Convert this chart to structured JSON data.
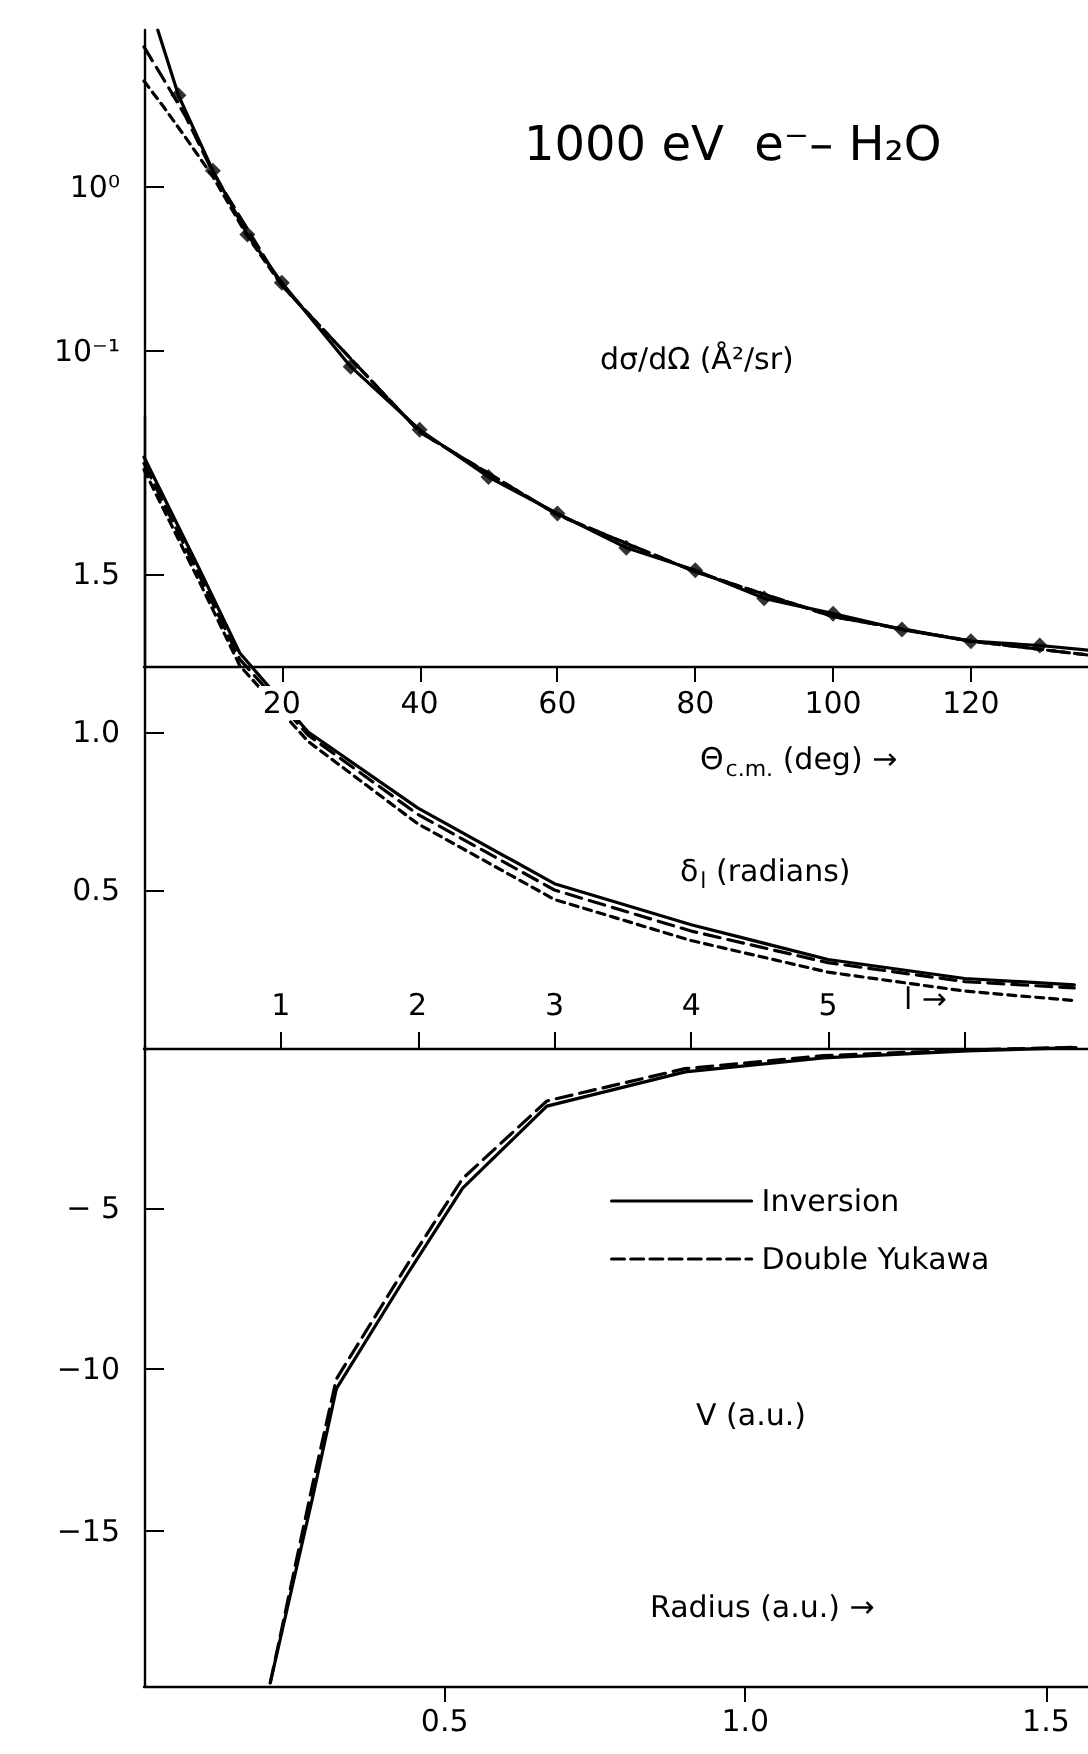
{
  "chart_data": [
    {
      "type": "line",
      "title": "1000 eV  e⁻– H₂O",
      "ylabel": "dσ/dΩ (Å²/sr)",
      "xlabel": "Θ$_{c.m.}$ (deg) →",
      "log": "y",
      "xlim": [
        0,
        137
      ],
      "xticks": [
        20,
        40,
        60,
        80,
        100,
        120
      ],
      "ylim": [
        0.0012,
        9
      ],
      "yticks": [
        {
          "value": 1,
          "label": "10⁰"
        },
        {
          "value": 0.1,
          "label": "10⁻¹"
        }
      ],
      "series": [
        {
          "type": "scatter",
          "marker": "diamond",
          "color": "#000000",
          "x": [
            5,
            10,
            15,
            20,
            30,
            40,
            50,
            60,
            70,
            80,
            90,
            100,
            110,
            120,
            130
          ],
          "values": [
            3.6,
            1.25,
            0.51,
            0.26,
            0.08,
            0.033,
            0.017,
            0.0102,
            0.0063,
            0.0046,
            0.0031,
            0.0025,
            0.002,
            0.0017,
            0.0016
          ]
        },
        {
          "line_style": "solid",
          "color": "#000000",
          "x": [
            2,
            5,
            10,
            15,
            20,
            30,
            40,
            50,
            60,
            70,
            80,
            90,
            100,
            110,
            120,
            130,
            137
          ],
          "values": [
            9,
            3.6,
            1.25,
            0.51,
            0.26,
            0.08,
            0.033,
            0.017,
            0.0102,
            0.0063,
            0.0046,
            0.0031,
            0.0025,
            0.002,
            0.0017,
            0.0016,
            0.0015
          ]
        },
        {
          "line_style": "dashed",
          "color": "#000000",
          "x": [
            0,
            3,
            6,
            10,
            20,
            40,
            60,
            80,
            100,
            120,
            137
          ],
          "values": [
            7.1,
            4.4,
            2.7,
            1.22,
            0.25,
            0.032,
            0.01,
            0.0045,
            0.0024,
            0.0017,
            0.0014
          ]
        },
        {
          "line_style": "dashed",
          "color": "#000000",
          "x": [
            0,
            3,
            6,
            10,
            15,
            20,
            40,
            60,
            80,
            100,
            120,
            137
          ],
          "values": [
            4.4,
            3.0,
            2.0,
            1.15,
            0.5,
            0.25,
            0.032,
            0.01,
            0.0045,
            0.0024,
            0.0017,
            0.0014
          ]
        }
      ]
    },
    {
      "type": "line",
      "ylabel": "δ$_{l}$ (radians)",
      "xlabel": "l →",
      "xlim": [
        0,
        6.9
      ],
      "xticks": [
        1,
        2,
        3,
        4,
        5,
        {
          "value": 6,
          "label": null
        }
      ],
      "ylim": [
        0,
        2
      ],
      "yticks": [
        0.5,
        {
          "value": 1,
          "label": "1.0"
        },
        1.5
      ],
      "series": [
        {
          "line_style": "solid",
          "color": "#000000",
          "x": [
            0,
            0.4,
            0.7,
            1.2,
            2,
            3,
            4,
            5,
            6,
            6.8
          ],
          "values": [
            1.87,
            1.52,
            1.25,
            1.0,
            0.76,
            0.52,
            0.39,
            0.28,
            0.22,
            0.2
          ]
        },
        {
          "line_style": "dashed",
          "color": "#000000",
          "x": [
            0,
            0.4,
            0.7,
            1.2,
            2,
            3,
            4,
            5,
            6,
            6.8
          ],
          "values": [
            1.85,
            1.5,
            1.23,
            0.99,
            0.74,
            0.5,
            0.37,
            0.27,
            0.21,
            0.19
          ]
        },
        {
          "line_style": "dashed",
          "color": "#000000",
          "x": [
            0,
            0.4,
            0.7,
            1.2,
            2,
            3,
            4,
            5,
            6,
            6.8
          ],
          "values": [
            1.83,
            1.48,
            1.21,
            0.97,
            0.71,
            0.47,
            0.34,
            0.24,
            0.18,
            0.15
          ]
        }
      ]
    },
    {
      "type": "line",
      "ylabel": "V (a.u.)",
      "xlabel": "Radius (a.u.) →",
      "legend": "top right",
      "xlim": [
        0,
        1.57
      ],
      "xticks": [
        0.5,
        {
          "value": 1,
          "label": "1.0"
        },
        1.5
      ],
      "ylim": [
        -19.8,
        0
      ],
      "yticks": [
        {
          "value": -5,
          "label": "− 5"
        },
        {
          "value": -10,
          "label": "−10"
        },
        {
          "value": -15,
          "label": "−15"
        }
      ],
      "series": [
        {
          "name": "Inversion",
          "line_style": "solid",
          "color": "#000000",
          "x": [
            0.21,
            0.28,
            0.32,
            0.44,
            0.53,
            0.67,
            0.9,
            1.13,
            1.37,
            1.55
          ],
          "values": [
            -19.7,
            -14.0,
            -10.6,
            -7.0,
            -4.4,
            -1.86,
            -0.8,
            -0.37,
            -0.15,
            -0.05
          ]
        },
        {
          "name": "Double Yukawa",
          "line_style": "dashed",
          "color": "#000000",
          "x": [
            0.21,
            0.28,
            0.32,
            0.44,
            0.53,
            0.67,
            0.9,
            1.13,
            1.37,
            1.55
          ],
          "values": [
            -19.7,
            -13.6,
            -10.3,
            -6.7,
            -4.1,
            -1.7,
            -0.7,
            -0.3,
            -0.12,
            -0.04
          ]
        }
      ]
    }
  ]
}
